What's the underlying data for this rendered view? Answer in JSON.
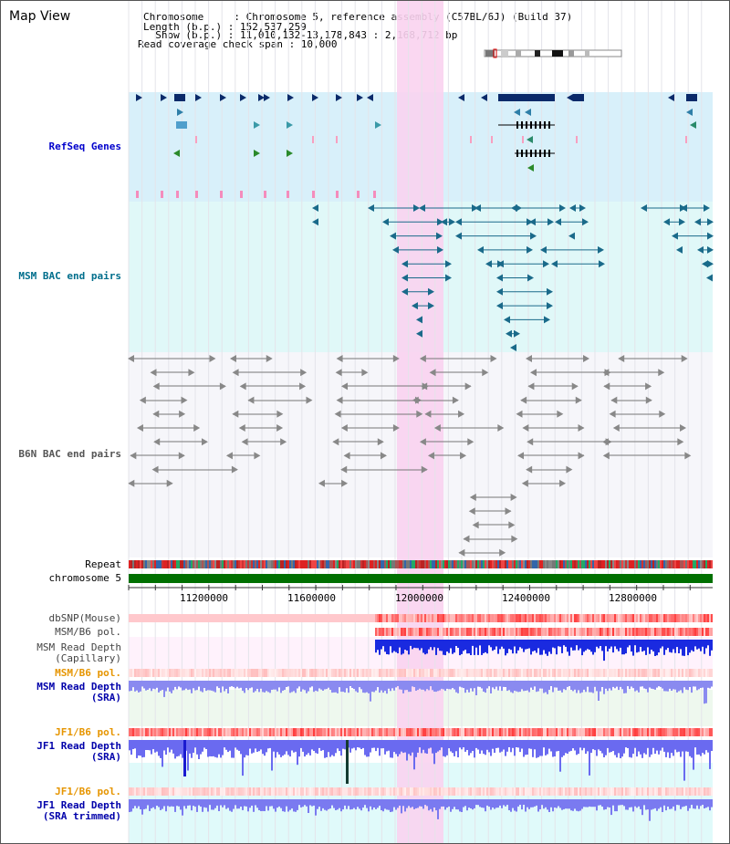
{
  "page_title": "Map View",
  "info": {
    "chromosome": "Chromosome     : Chromosome 5, reference assembly (C57BL/6J) (Build 37)",
    "length": "Length (b.p.) : 152,537,259",
    "show": "  Show (b.p.) : 11,010,132-13,178,843 : 2,168,712 bp",
    "span": "Read coverage check span : 10,000"
  },
  "tracks": {
    "refseq": "RefSeq Genes",
    "msm_bac": "MSM BAC end pairs",
    "b6n_bac": "B6N BAC end pairs",
    "repeat": "Repeat",
    "chromosome": "chromosome 5",
    "dbsnp": "dbSNP(Mouse)",
    "msm_b6_pol_1": "MSM/B6 pol.",
    "msm_depth_cap_1": "MSM Read Depth",
    "msm_depth_cap_2": "(Capillary)",
    "msm_b6_pol_2": "MSM/B6 pol.",
    "msm_depth_sra_1": "MSM Read Depth",
    "msm_depth_sra_2": "(SRA)",
    "jf1_pol_1": "JF1/B6 pol.",
    "jf1_depth_1": "JF1 Read Depth",
    "jf1_depth_2": "(SRA)",
    "jf1_pol_2": "JF1/B6 pol.",
    "jf1_trim_1": "JF1 Read Depth",
    "jf1_trim_2": "(SRA trimmed)"
  },
  "scale_ticks": [
    "11200000",
    "11600000",
    "12000000",
    "12400000",
    "12800000"
  ],
  "colors": {
    "refseq_label": "#0000cc",
    "msm_bac_label": "#006e8c",
    "b6n_bac_label": "#555555",
    "pol_label": "#e69500",
    "depth_label": "#0000aa",
    "highlight": "#f9d3ef",
    "chromosome_bar": "#007000"
  }
}
